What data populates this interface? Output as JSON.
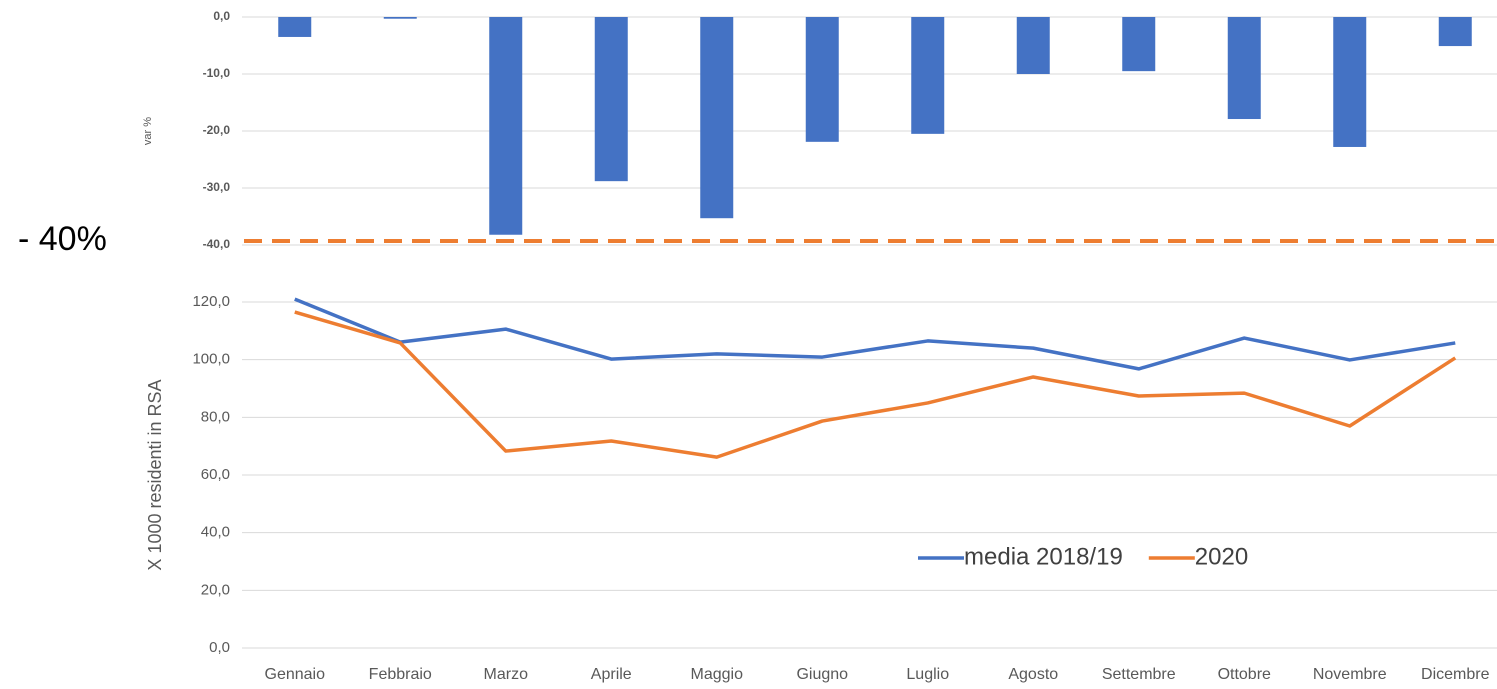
{
  "chart_data": [
    {
      "type": "bar",
      "ylabel": "var %",
      "values": [
        -3.5,
        -0.3,
        -38.2,
        -28.8,
        -35.3,
        -21.9,
        -20.5,
        -10.0,
        -9.5,
        -17.9,
        -22.8,
        -5.1
      ],
      "color": "#4472c4",
      "ylim": [
        -40,
        0
      ],
      "yticks": [
        {
          "value": -40,
          "label": "-40,0"
        },
        {
          "value": -30,
          "label": "-30,0"
        },
        {
          "value": -20,
          "label": "-20,0"
        },
        {
          "value": -10,
          "label": "-10,0"
        },
        {
          "value": 0,
          "label": "0,0"
        }
      ],
      "grid": true,
      "reference_line": {
        "label": "- 40%",
        "value": -40,
        "color": "#ed7d31"
      }
    },
    {
      "type": "line",
      "ylabel": "X 1000 residenti in RSA",
      "categories": [
        "Gennaio",
        "Febbraio",
        "Marzo",
        "Aprile",
        "Maggio",
        "Giugno",
        "Luglio",
        "Agosto",
        "Settembre",
        "Ottobre",
        "Novembre",
        "Dicembre"
      ],
      "series": [
        {
          "name": "media 2018/19",
          "color": "#4472c4",
          "values": [
            121.0,
            106.1,
            110.6,
            100.2,
            102.0,
            100.9,
            106.5,
            104.0,
            96.8,
            107.5,
            99.9,
            105.8
          ]
        },
        {
          "name": "2020",
          "color": "#ed7d31",
          "values": [
            116.5,
            105.8,
            68.3,
            71.8,
            66.2,
            78.7,
            85.0,
            94.0,
            87.4,
            88.4,
            77.0,
            100.6
          ]
        }
      ],
      "ylim": [
        0,
        120
      ],
      "yticks": [
        {
          "value": 0,
          "label": "0,0"
        },
        {
          "value": 20,
          "label": "20,0"
        },
        {
          "value": 40,
          "label": "40,0"
        },
        {
          "value": 60,
          "label": "60,0"
        },
        {
          "value": 80,
          "label": "80,0"
        },
        {
          "value": 100,
          "label": "100,0"
        },
        {
          "value": 120,
          "label": "120,0"
        }
      ],
      "grid": true,
      "legend": "lower right"
    }
  ]
}
